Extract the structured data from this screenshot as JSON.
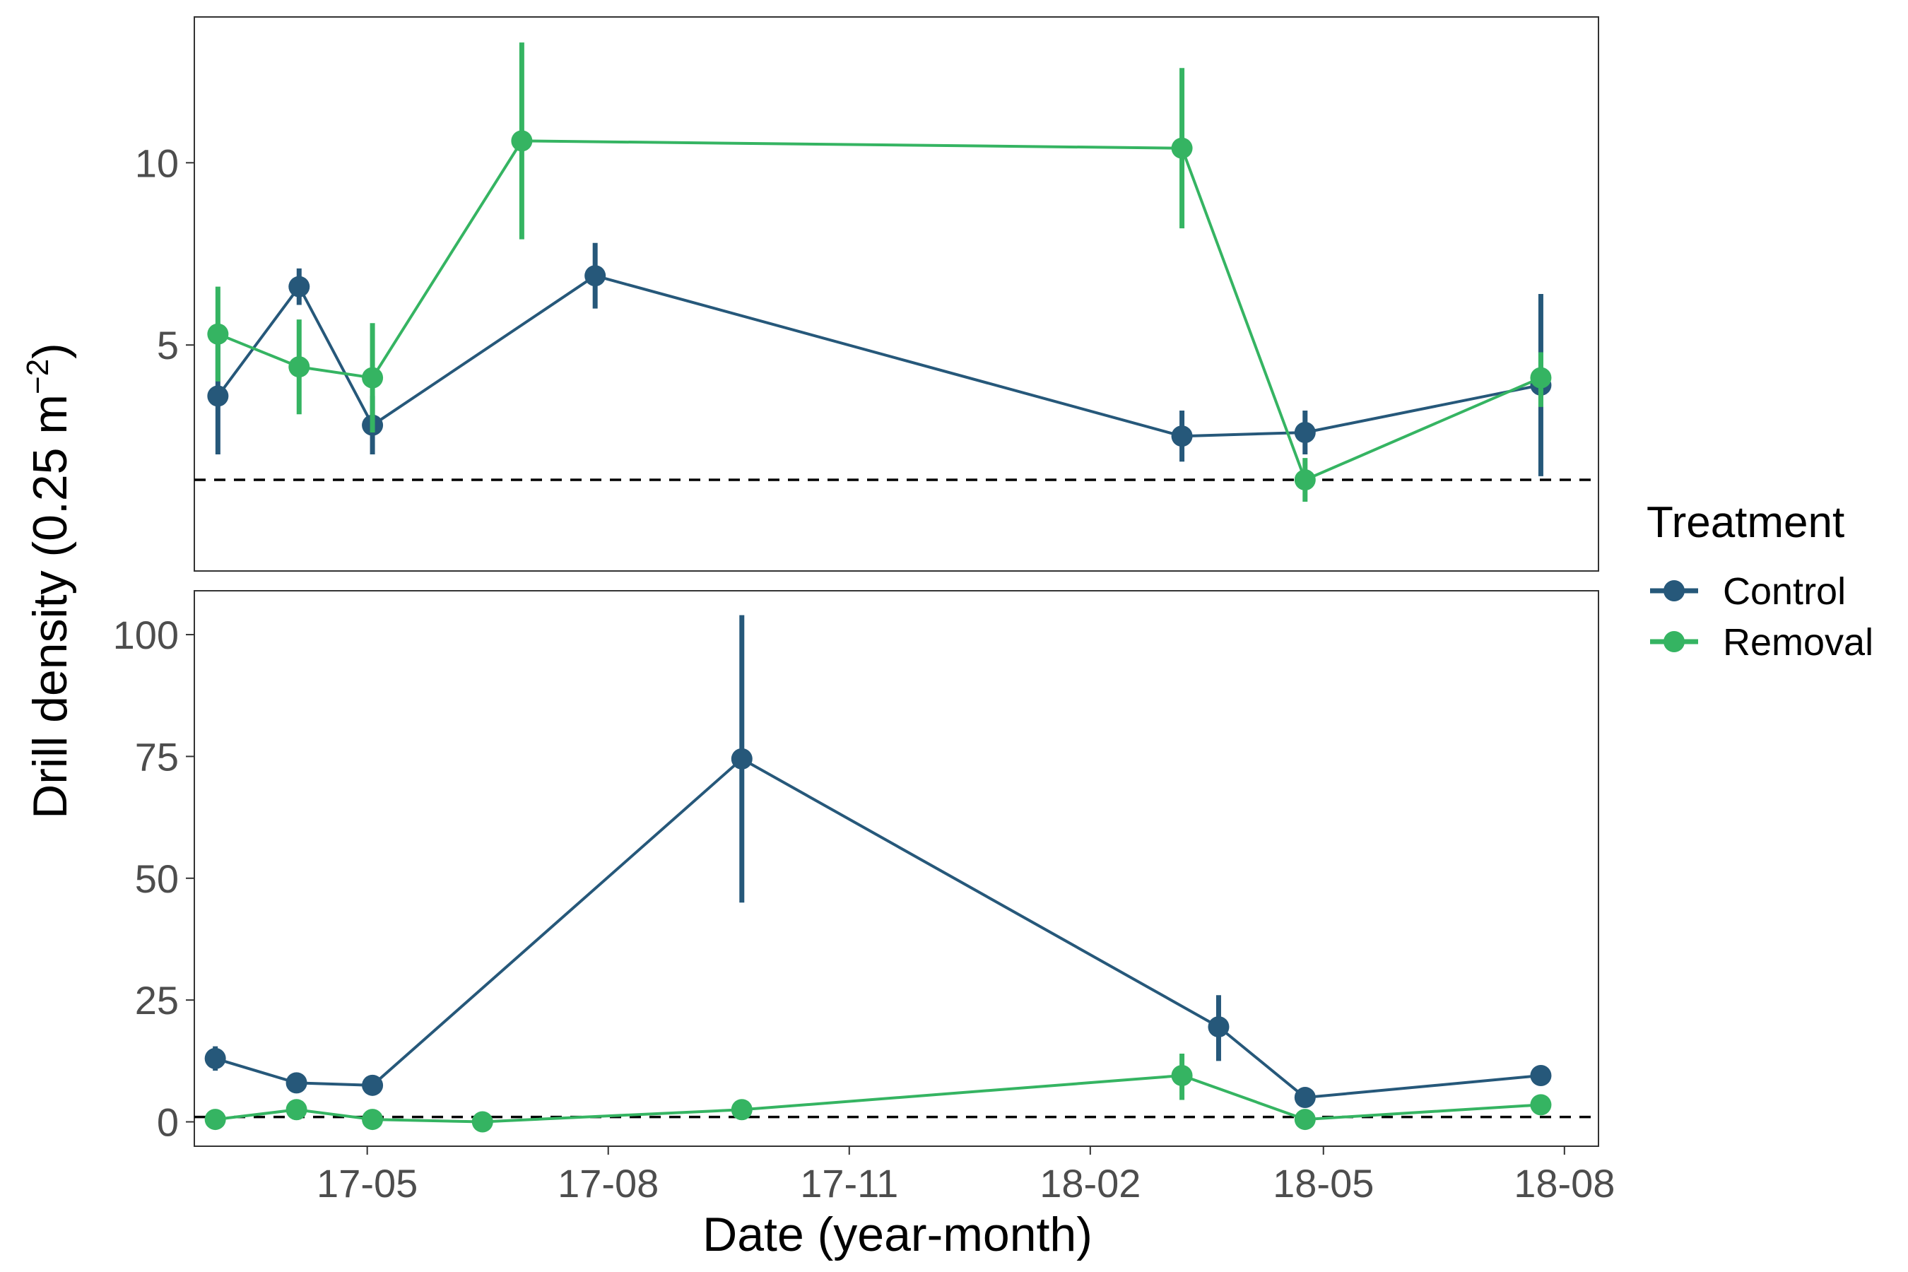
{
  "chart_data": {
    "type": "line",
    "xlabel": "Date (year-month)",
    "ylabel_main": "Drill density (0.25 m",
    "ylabel_sup": "−2",
    "ylabel_close": ")",
    "x_ticks": [
      "17-05",
      "17-08",
      "17-11",
      "18-02",
      "18-05",
      "18-08"
    ],
    "legend": {
      "title": "Treatment",
      "position": "right",
      "entries": [
        "Control",
        "Removal"
      ]
    },
    "colors": {
      "Control": "#26587a",
      "Removal": "#35b462"
    },
    "reference_line": "dashed",
    "panels": [
      {
        "ylim": [
          -1.2,
          14
        ],
        "y_ticks": [
          "5",
          "10"
        ],
        "y_tick_values": [
          5,
          10
        ],
        "reference_value": 1.3,
        "series": [
          {
            "name": "Control",
            "points": [
              {
                "x": "2017-03-05",
                "y": 3.6,
                "lo": 2.0,
                "hi": 5.3
              },
              {
                "x": "2017-04-05",
                "y": 6.6,
                "lo": 6.1,
                "hi": 7.1
              },
              {
                "x": "2017-05-03",
                "y": 2.8,
                "lo": 2.0,
                "hi": 3.6
              },
              {
                "x": "2017-07-27",
                "y": 6.9,
                "lo": 6.0,
                "hi": 7.8
              },
              {
                "x": "2018-03-08",
                "y": 2.5,
                "lo": 1.8,
                "hi": 3.2
              },
              {
                "x": "2018-04-24",
                "y": 2.6,
                "lo": 2.0,
                "hi": 3.2
              },
              {
                "x": "2018-07-23",
                "y": 3.9,
                "lo": 1.4,
                "hi": 6.4
              }
            ]
          },
          {
            "name": "Removal",
            "points": [
              {
                "x": "2017-03-05",
                "y": 5.3,
                "lo": 4.0,
                "hi": 6.6
              },
              {
                "x": "2017-04-05",
                "y": 4.4,
                "lo": 3.1,
                "hi": 5.7
              },
              {
                "x": "2017-05-03",
                "y": 4.1,
                "lo": 2.6,
                "hi": 5.6
              },
              {
                "x": "2017-06-29",
                "y": 10.6,
                "lo": 7.9,
                "hi": 13.3
              },
              {
                "x": "2018-03-08",
                "y": 10.4,
                "lo": 8.2,
                "hi": 12.6
              },
              {
                "x": "2018-04-24",
                "y": 1.3,
                "lo": 0.7,
                "hi": 1.9
              },
              {
                "x": "2018-07-23",
                "y": 4.1,
                "lo": 3.3,
                "hi": 4.8
              }
            ]
          }
        ]
      },
      {
        "ylim": [
          -5,
          109
        ],
        "y_ticks": [
          "0",
          "25",
          "50",
          "75",
          "100"
        ],
        "y_tick_values": [
          0,
          25,
          50,
          75,
          100
        ],
        "reference_value": 1,
        "series": [
          {
            "name": "Control",
            "points": [
              {
                "x": "2017-03-04",
                "y": 13,
                "lo": 10.5,
                "hi": 15.5
              },
              {
                "x": "2017-04-04",
                "y": 8,
                "lo": 6,
                "hi": 10
              },
              {
                "x": "2017-05-03",
                "y": 7.5,
                "lo": 6.5,
                "hi": 8.5
              },
              {
                "x": "2017-09-21",
                "y": 74.5,
                "lo": 45,
                "hi": 104
              },
              {
                "x": "2018-03-22",
                "y": 19.5,
                "lo": 12.5,
                "hi": 26
              },
              {
                "x": "2018-04-24",
                "y": 5,
                "lo": 4,
                "hi": 6
              },
              {
                "x": "2018-07-23",
                "y": 9.5,
                "lo": 7.5,
                "hi": 11.5
              }
            ]
          },
          {
            "name": "Removal",
            "points": [
              {
                "x": "2017-03-04",
                "y": 0.5,
                "lo": 0,
                "hi": 1
              },
              {
                "x": "2017-04-04",
                "y": 2.5,
                "lo": 1,
                "hi": 4
              },
              {
                "x": "2017-05-03",
                "y": 0.5,
                "lo": 0,
                "hi": 1
              },
              {
                "x": "2017-06-14",
                "y": 0,
                "lo": 0,
                "hi": 0
              },
              {
                "x": "2017-09-21",
                "y": 2.5,
                "lo": 2,
                "hi": 3
              },
              {
                "x": "2018-03-08",
                "y": 9.5,
                "lo": 4.5,
                "hi": 14
              },
              {
                "x": "2018-04-24",
                "y": 0.5,
                "lo": 0,
                "hi": 1
              },
              {
                "x": "2018-07-23",
                "y": 3.5,
                "lo": 2,
                "hi": 5
              }
            ]
          }
        ]
      }
    ]
  }
}
